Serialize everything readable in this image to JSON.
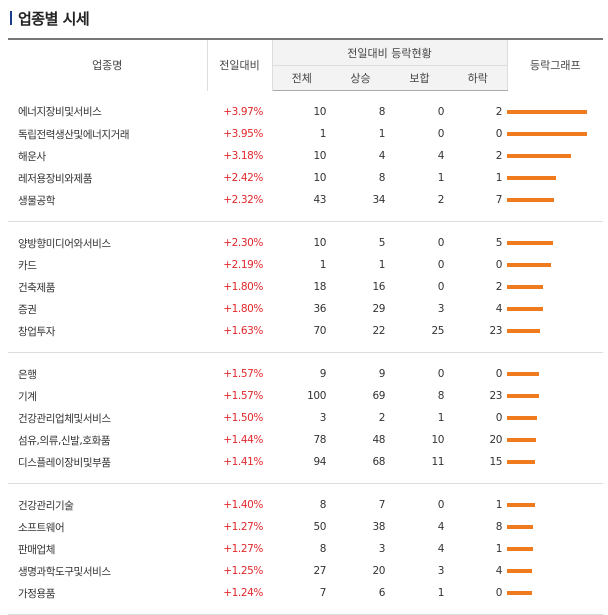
{
  "title": "업종별 시세",
  "headers": {
    "industry": "업종명",
    "change": "전일대비",
    "status": "전일대비 등락현황",
    "total": "전체",
    "up": "상승",
    "flat": "보합",
    "down": "하락",
    "graph": "등락그래프"
  },
  "colors": {
    "rise": "#e0282c",
    "bar": "#f07a1e",
    "title_mark": "#1a3e8c"
  },
  "groups": [
    [
      {
        "name": "에너지장비및서비스",
        "change": "+3.97%",
        "total": "10",
        "up": "8",
        "flat": "0",
        "down": "2",
        "pct": 3.97
      },
      {
        "name": "독립전력생산및에너지거래",
        "change": "+3.95%",
        "total": "1",
        "up": "1",
        "flat": "0",
        "down": "0",
        "pct": 3.95
      },
      {
        "name": "해운사",
        "change": "+3.18%",
        "total": "10",
        "up": "4",
        "flat": "4",
        "down": "2",
        "pct": 3.18
      },
      {
        "name": "레저용장비와제품",
        "change": "+2.42%",
        "total": "10",
        "up": "8",
        "flat": "1",
        "down": "1",
        "pct": 2.42
      },
      {
        "name": "생물공학",
        "change": "+2.32%",
        "total": "43",
        "up": "34",
        "flat": "2",
        "down": "7",
        "pct": 2.32
      }
    ],
    [
      {
        "name": "양방향미디어와서비스",
        "change": "+2.30%",
        "total": "10",
        "up": "5",
        "flat": "0",
        "down": "5",
        "pct": 2.3
      },
      {
        "name": "카드",
        "change": "+2.19%",
        "total": "1",
        "up": "1",
        "flat": "0",
        "down": "0",
        "pct": 2.19
      },
      {
        "name": "건축제품",
        "change": "+1.80%",
        "total": "18",
        "up": "16",
        "flat": "0",
        "down": "2",
        "pct": 1.8
      },
      {
        "name": "증권",
        "change": "+1.80%",
        "total": "36",
        "up": "29",
        "flat": "3",
        "down": "4",
        "pct": 1.8
      },
      {
        "name": "창업투자",
        "change": "+1.63%",
        "total": "70",
        "up": "22",
        "flat": "25",
        "down": "23",
        "pct": 1.63
      }
    ],
    [
      {
        "name": "은행",
        "change": "+1.57%",
        "total": "9",
        "up": "9",
        "flat": "0",
        "down": "0",
        "pct": 1.57
      },
      {
        "name": "기계",
        "change": "+1.57%",
        "total": "100",
        "up": "69",
        "flat": "8",
        "down": "23",
        "pct": 1.57
      },
      {
        "name": "건강관리업체및서비스",
        "change": "+1.50%",
        "total": "3",
        "up": "2",
        "flat": "1",
        "down": "0",
        "pct": 1.5
      },
      {
        "name": "섬유,의류,신발,호화품",
        "change": "+1.44%",
        "total": "78",
        "up": "48",
        "flat": "10",
        "down": "20",
        "pct": 1.44
      },
      {
        "name": "디스플레이장비및부품",
        "change": "+1.41%",
        "total": "94",
        "up": "68",
        "flat": "11",
        "down": "15",
        "pct": 1.41
      }
    ],
    [
      {
        "name": "건강관리기술",
        "change": "+1.40%",
        "total": "8",
        "up": "7",
        "flat": "0",
        "down": "1",
        "pct": 1.4
      },
      {
        "name": "소프트웨어",
        "change": "+1.27%",
        "total": "50",
        "up": "38",
        "flat": "4",
        "down": "8",
        "pct": 1.27
      },
      {
        "name": "판매업체",
        "change": "+1.27%",
        "total": "8",
        "up": "3",
        "flat": "4",
        "down": "1",
        "pct": 1.27
      },
      {
        "name": "생명과학도구및서비스",
        "change": "+1.25%",
        "total": "27",
        "up": "20",
        "flat": "3",
        "down": "4",
        "pct": 1.25
      },
      {
        "name": "가정용품",
        "change": "+1.24%",
        "total": "7",
        "up": "6",
        "flat": "1",
        "down": "0",
        "pct": 1.24
      }
    ]
  ]
}
